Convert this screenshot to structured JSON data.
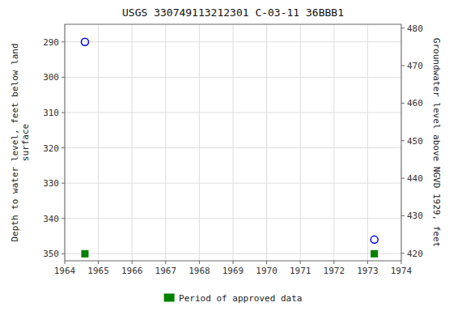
{
  "chart_data": {
    "type": "scatter",
    "title": "USGS 330749113212301 C-03-11 36BBB1",
    "x": [
      1964.6,
      1973.2
    ],
    "series": [
      {
        "color": "#0000ff",
        "marker": "circle",
        "values": [
          290.0,
          346.0
        ]
      },
      {
        "name": "Period of approved data",
        "color": "#008000",
        "marker": "square",
        "values": [
          350.0,
          350.0
        ]
      }
    ],
    "xlim": [
      1964,
      1974
    ],
    "xticks": [
      1964,
      1965,
      1966,
      1967,
      1968,
      1969,
      1970,
      1971,
      1972,
      1973,
      1974
    ],
    "ylim": [
      352,
      285
    ],
    "yticks": [
      290,
      300,
      310,
      320,
      330,
      340,
      350
    ],
    "y2lim": [
      418,
      481
    ],
    "y2ticks": [
      480,
      470,
      460,
      450,
      440,
      430,
      420
    ],
    "ylabel": "Depth to water level, feet below land\nsurface",
    "y2label": "Groundwater level above NGVD 1929, feet",
    "grid": true,
    "legend": "bottom"
  }
}
